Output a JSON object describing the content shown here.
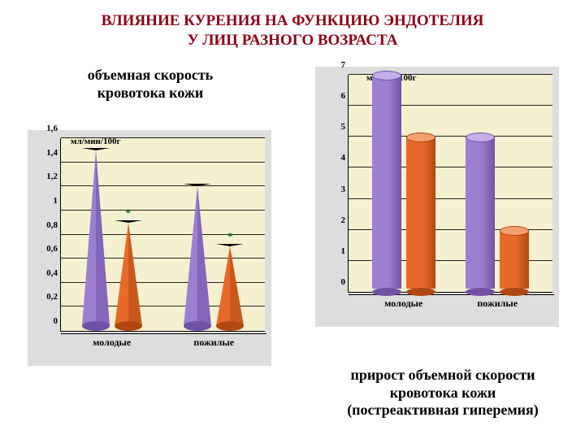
{
  "title_line1": "ВЛИЯНИЕ КУРЕНИЯ НА ФУНКЦИЮ ЭНДОТЕЛИЯ",
  "title_line2": "У ЛИЦ РАЗНОГО ВОЗРАСТА",
  "left_chart": {
    "subtitle_l1": "объемная скорость",
    "subtitle_l2": "кровотока кожи",
    "type": "cone",
    "y_unit": "мл/мин/100г",
    "y_unit_fontsize": 11,
    "ylim": [
      0,
      1.6
    ],
    "yticks": [
      0,
      0.2,
      0.4,
      0.6,
      0.8,
      1.0,
      1.2,
      1.4,
      1.6
    ],
    "ytick_labels": [
      "0",
      "0,2",
      "0,4",
      "0,6",
      "0,8",
      "1",
      "1,2",
      "1,4",
      "1,6"
    ],
    "categories": [
      "молодые",
      "пожилые"
    ],
    "series": [
      {
        "color": "#9c7fd1",
        "dark": "#6f52a6",
        "values": [
          1.5,
          1.2
        ]
      },
      {
        "color": "#e86a2a",
        "dark": "#b14812",
        "values": [
          0.9,
          0.7
        ]
      }
    ],
    "markers": [
      {
        "group": 0,
        "series": 1,
        "text": "*"
      },
      {
        "group": 1,
        "series": 1,
        "text": "*"
      }
    ],
    "cone_half_width": 17,
    "wall_bg": "#f5f0d0",
    "panel_bg": "#dddddd"
  },
  "right_chart": {
    "subtitle_l1": "прирост объемной скорости",
    "subtitle_l2": "кровотока кожи",
    "subtitle_l3": "(постреактивная гиперемия)",
    "type": "cylinder",
    "y_unit": "мл/мин/100г",
    "y_unit_fontsize": 11,
    "ylim": [
      0,
      7
    ],
    "yticks": [
      0,
      1,
      2,
      3,
      4,
      5,
      6,
      7
    ],
    "ytick_labels": [
      "0",
      "1",
      "2",
      "3",
      "4",
      "5",
      "6",
      "7"
    ],
    "categories": [
      "молодые",
      "пожилые"
    ],
    "series": [
      {
        "color": "#9c7fd1",
        "dark": "#6f52a6",
        "light": "#c4b0e6",
        "values": [
          7.0,
          5.0
        ]
      },
      {
        "color": "#e86a2a",
        "dark": "#b14812",
        "light": "#f4a06e",
        "values": [
          5.0,
          2.0
        ]
      }
    ],
    "cyl_width": 36,
    "wall_bg": "#f5f0d0",
    "panel_bg": "#dddddd"
  },
  "text_color": "#000000",
  "title_color": "#8b0015",
  "background_color": "#ffffff"
}
